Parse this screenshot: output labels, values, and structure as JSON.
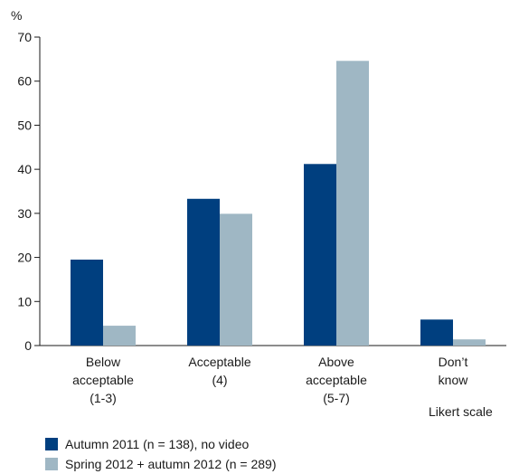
{
  "colors": {
    "series1": "#003f7f",
    "series2": "#9fb7c4",
    "axis": "#1a1a1a"
  },
  "chart_data": {
    "type": "bar",
    "ylabel": "%",
    "xlabel": "Likert scale",
    "ylim": [
      0,
      70
    ],
    "yticks": [
      0,
      10,
      20,
      30,
      40,
      50,
      60,
      70
    ],
    "grid": false,
    "legend_position": "bottom-left",
    "categories": [
      [
        "Below",
        "acceptable",
        "(1-3)"
      ],
      [
        "Acceptable",
        "(4)"
      ],
      [
        "Above",
        "acceptable",
        "(5-7)"
      ],
      [
        "Don’t",
        "know"
      ]
    ],
    "series": [
      {
        "name": "Autumn 2011 (n = 138), no video",
        "values": [
          19.5,
          33.3,
          41.2,
          5.9
        ]
      },
      {
        "name": "Spring 2012 + autumn 2012 (n = 289)",
        "values": [
          4.5,
          29.9,
          64.6,
          1.4
        ]
      }
    ]
  }
}
